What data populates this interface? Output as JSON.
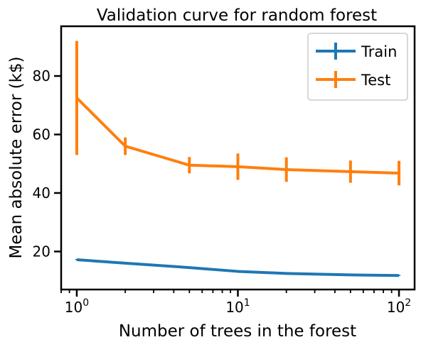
{
  "chart_data": {
    "type": "line",
    "title": "Validation curve for random forest",
    "xlabel": "Number of trees in the forest",
    "ylabel": "Mean absolute error (k$)",
    "xscale": "log",
    "xlim": [
      0.8,
      125
    ],
    "ylim": [
      7,
      97
    ],
    "x_ticks": [
      {
        "value": 1,
        "base": "10",
        "exp": "0"
      },
      {
        "value": 10,
        "base": "10",
        "exp": "1"
      },
      {
        "value": 100,
        "base": "10",
        "exp": "2"
      }
    ],
    "y_ticks": [
      {
        "value": 20,
        "label": "20"
      },
      {
        "value": 40,
        "label": "40"
      },
      {
        "value": 60,
        "label": "60"
      },
      {
        "value": 80,
        "label": "80"
      }
    ],
    "x": [
      1,
      2,
      5,
      10,
      20,
      50,
      100
    ],
    "series": [
      {
        "name": "Train",
        "color": "#1f77b4",
        "values": [
          17.2,
          16.0,
          14.5,
          13.2,
          12.5,
          12.0,
          11.8
        ],
        "errors": [
          0.2,
          0.2,
          0.2,
          0.2,
          0.2,
          0.2,
          0.2
        ]
      },
      {
        "name": "Test",
        "color": "#ff7f0e",
        "values": [
          72.5,
          56.0,
          49.5,
          49.0,
          48.0,
          47.3,
          46.8
        ],
        "errors": [
          19.5,
          3.0,
          2.8,
          4.5,
          4.2,
          3.8,
          4.2
        ]
      }
    ],
    "legend": {
      "placement": "top-right",
      "entries": [
        "Train",
        "Test"
      ]
    },
    "grid": false
  }
}
